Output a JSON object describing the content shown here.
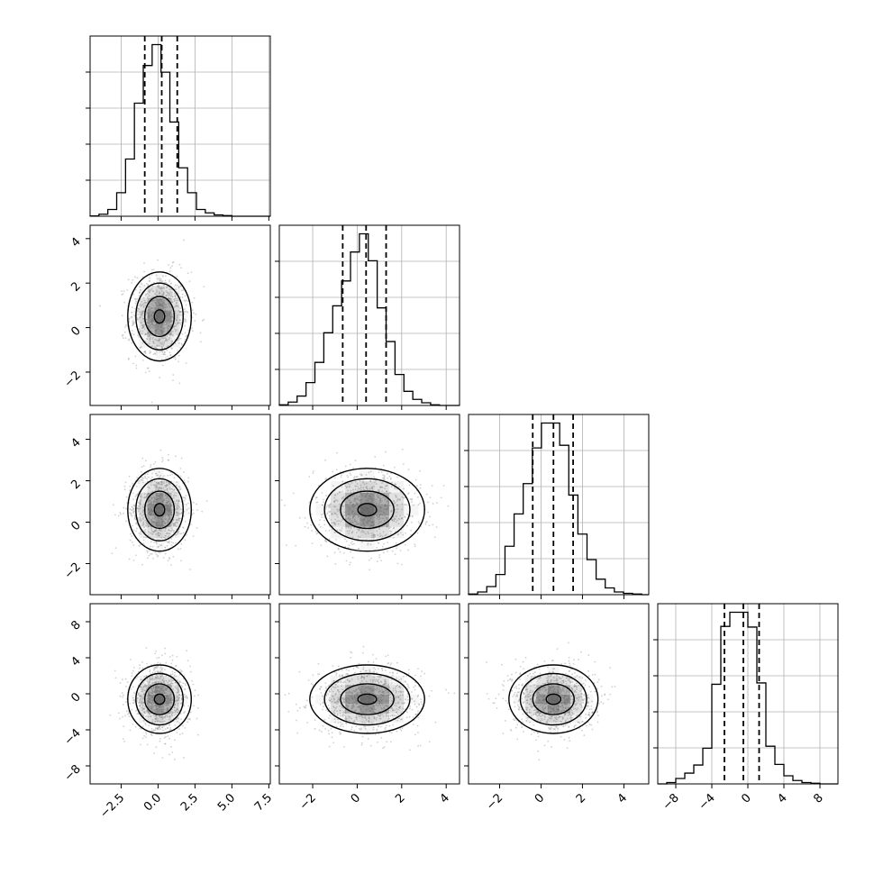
{
  "chart_data": {
    "type": "corner",
    "grid": true,
    "title": "",
    "parameters": [
      {
        "xticks": [
          -2.5,
          0.0,
          2.5,
          5.0,
          7.5
        ],
        "xtick_labels": [
          "−2.5",
          "0.0",
          "2.5",
          "5.0",
          "7.5"
        ],
        "xlim": [
          -4.6,
          7.6
        ],
        "yticks": [],
        "ytick_labels": [],
        "ylim": [
          -3.5,
          5.2
        ]
      },
      {
        "xticks": [
          -2,
          0,
          2,
          4
        ],
        "xtick_labels": [
          "−2",
          "0",
          "2",
          "4"
        ],
        "xlim": [
          -3.5,
          4.6
        ],
        "yticks": [
          -2,
          0,
          2,
          4
        ],
        "ytick_labels": [
          "−2",
          "0",
          "2",
          "4"
        ],
        "ylim": [
          -3.5,
          4.6
        ]
      },
      {
        "xticks": [
          -2,
          0,
          2,
          4
        ],
        "xtick_labels": [
          "−2",
          "0",
          "2",
          "4"
        ],
        "xlim": [
          -3.5,
          5.2
        ],
        "yticks": [
          -2,
          0,
          2,
          4
        ],
        "ytick_labels": [
          "−2",
          "0",
          "2",
          "4"
        ],
        "ylim": [
          -3.5,
          5.2
        ]
      },
      {
        "xticks": [
          -8,
          -4,
          0,
          4,
          8
        ],
        "xtick_labels": [
          "−8",
          "−4",
          "0",
          "4",
          "8"
        ],
        "xlim": [
          -10,
          10
        ],
        "yticks": [
          -8,
          -4,
          0,
          4,
          8
        ],
        "ytick_labels": [
          "−8",
          "−4",
          "0",
          "4",
          "8"
        ],
        "ylim": [
          -10,
          10
        ]
      }
    ],
    "marginals": [
      {
        "edges": [
          -4.6,
          -4.0,
          -3.4,
          -2.8,
          -2.2,
          -1.6,
          -1.0,
          -0.4,
          0.2,
          0.8,
          1.4,
          2.0,
          2.6,
          3.2,
          3.8,
          4.4,
          5.0,
          5.6,
          6.2,
          6.8,
          7.6
        ],
        "counts": [
          0.5,
          3,
          10,
          35,
          85,
          168,
          224,
          255,
          214,
          140,
          72,
          35,
          10,
          5,
          2,
          1,
          0,
          0,
          0,
          0
        ],
        "quantiles": [
          -0.9,
          0.25,
          1.3
        ]
      },
      {
        "edges": [
          -3.5,
          -3.1,
          -2.7,
          -2.3,
          -1.9,
          -1.5,
          -1.1,
          -0.7,
          -0.3,
          0.1,
          0.5,
          0.9,
          1.3,
          1.7,
          2.1,
          2.5,
          2.9,
          3.3,
          3.7,
          4.1,
          4.6
        ],
        "counts": [
          1,
          5,
          14,
          34,
          64,
          108,
          148,
          185,
          228,
          255,
          215,
          145,
          95,
          46,
          21,
          9,
          4,
          1,
          0,
          0
        ],
        "quantiles": [
          -0.65,
          0.4,
          1.3
        ]
      },
      {
        "edges": [
          -3.5,
          -3.06,
          -2.62,
          -2.18,
          -1.74,
          -1.3,
          -0.86,
          -0.42,
          0.02,
          0.46,
          0.9,
          1.34,
          1.78,
          2.22,
          2.66,
          3.1,
          3.54,
          3.98,
          4.42,
          4.86,
          5.2
        ],
        "counts": [
          1,
          4,
          12,
          30,
          72,
          120,
          165,
          218,
          255,
          255,
          222,
          148,
          90,
          52,
          23,
          10,
          4,
          2,
          1,
          0
        ],
        "quantiles": [
          -0.4,
          0.6,
          1.55
        ]
      },
      {
        "edges": [
          -10,
          -9,
          -8,
          -7,
          -6,
          -5,
          -4,
          -3,
          -2,
          -1,
          0,
          1,
          2,
          3,
          4,
          5,
          6,
          7,
          8,
          9,
          10
        ],
        "counts": [
          0,
          2,
          8,
          16,
          28,
          53,
          148,
          234,
          255,
          255,
          233,
          150,
          56,
          29,
          12,
          5,
          2,
          1,
          0,
          0
        ],
        "quantiles": [
          -2.6,
          -0.5,
          1.25
        ]
      }
    ],
    "joints": [
      {
        "xi": 0,
        "yi": 1,
        "mean": [
          0.1,
          0.5
        ],
        "sd": [
          1.0,
          1.0
        ]
      },
      {
        "xi": 0,
        "yi": 2,
        "mean": [
          0.1,
          0.6
        ],
        "sd": [
          1.0,
          1.0
        ]
      },
      {
        "xi": 1,
        "yi": 2,
        "mean": [
          0.45,
          0.6
        ],
        "sd": [
          1.2,
          1.0
        ]
      },
      {
        "xi": 0,
        "yi": 3,
        "mean": [
          0.1,
          -0.6
        ],
        "sd": [
          1.0,
          1.9
        ]
      },
      {
        "xi": 1,
        "yi": 3,
        "mean": [
          0.45,
          -0.6
        ],
        "sd": [
          1.2,
          1.9
        ]
      },
      {
        "xi": 2,
        "yi": 3,
        "mean": [
          0.6,
          -0.6
        ],
        "sd": [
          1.0,
          1.9
        ]
      }
    ],
    "colors": {
      "line": "#000000",
      "grid": "#b0b0b0",
      "points": "#9a9a9a",
      "density": "#555555"
    }
  }
}
